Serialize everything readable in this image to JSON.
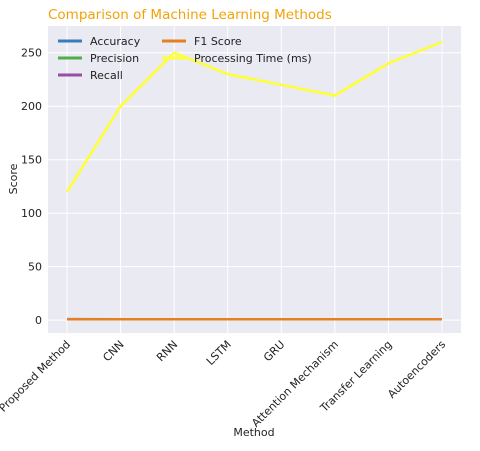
{
  "chart_data": {
    "type": "line",
    "title": "Comparison of Machine Learning Methods",
    "xlabel": "Method",
    "ylabel": "Score",
    "categories": [
      "Proposed Method",
      "CNN",
      "RNN",
      "LSTM",
      "GRU",
      "Attention Mechanism",
      "Transfer Learning",
      "Autoencoders"
    ],
    "ylim": [
      -12,
      275
    ],
    "yticks": [
      0,
      50,
      100,
      150,
      200,
      250
    ],
    "grid": true,
    "legend_position": "top-left",
    "series": [
      {
        "name": "Accuracy",
        "color": "#377eb8",
        "values": [
          0.95,
          0.92,
          0.9,
          0.91,
          0.89,
          0.93,
          0.94,
          0.88
        ]
      },
      {
        "name": "Precision",
        "color": "#4daf4a",
        "values": [
          0.94,
          0.91,
          0.89,
          0.9,
          0.88,
          0.92,
          0.93,
          0.87
        ]
      },
      {
        "name": "Recall",
        "color": "#984ea3",
        "values": [
          0.93,
          0.9,
          0.88,
          0.89,
          0.87,
          0.91,
          0.92,
          0.86
        ]
      },
      {
        "name": "F1 Score",
        "color": "#e67e22",
        "values": [
          0.93,
          0.9,
          0.88,
          0.89,
          0.87,
          0.91,
          0.92,
          0.86
        ]
      },
      {
        "name": "Processing Time (ms)",
        "color": "#ffff33",
        "values": [
          120,
          200,
          250,
          230,
          220,
          210,
          240,
          260
        ]
      }
    ],
    "colors": {
      "plot_bg": "#eaeaf2",
      "grid": "#ffffff",
      "title": "#f0a30a"
    }
  }
}
